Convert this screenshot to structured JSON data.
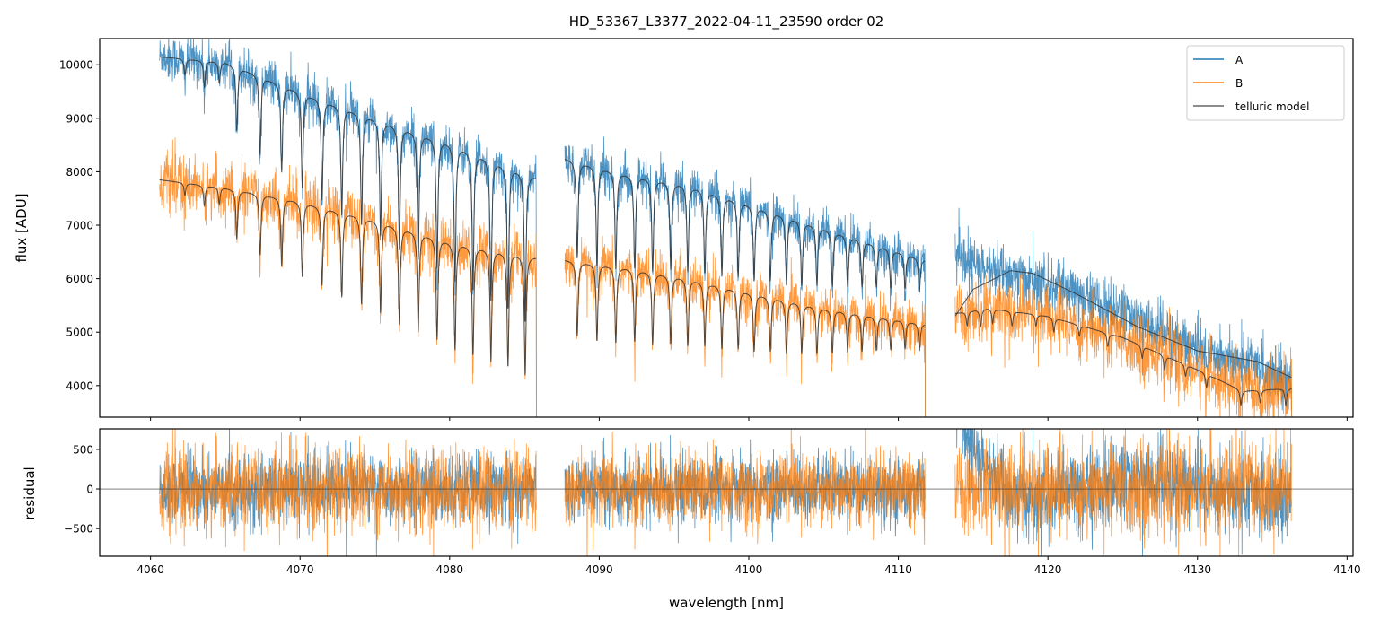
{
  "chart_data": [
    {
      "type": "line",
      "title": "HD_53367_L3377_2022-04-11_23590  order 02",
      "xlabel": "",
      "ylabel": "flux [ADU]",
      "xlim": [
        4056.6,
        4140.4
      ],
      "ylim": [
        3410,
        10490
      ],
      "xticks": [
        4060,
        4070,
        4080,
        4090,
        4100,
        4110,
        4120,
        4130,
        4140
      ],
      "yticks": [
        4000,
        5000,
        6000,
        7000,
        8000,
        9000,
        10000
      ],
      "ytick_labels": [
        "4000",
        "5000",
        "6000",
        "7000",
        "8000",
        "9000",
        "10000"
      ],
      "legend": {
        "placement": "top-right",
        "entries": [
          "A",
          "B",
          "telluric model"
        ]
      },
      "colors": {
        "A": "#1f77b4",
        "B": "#ff7f0e",
        "model": "#333333"
      },
      "segments": [
        {
          "range": [
            4060.6,
            4085.8
          ],
          "lines": [
            4062.3,
            4063.6,
            4064.6,
            4065.77,
            4067.33,
            4068.77,
            4070.15,
            4071.47,
            4072.79,
            4074.11,
            4075.38,
            4076.64,
            4077.9,
            4079.16,
            4080.36,
            4081.56,
            4082.76,
            4083.9,
            4085.05
          ],
          "depths": [
            0.03,
            0.05,
            0.04,
            0.12,
            0.15,
            0.17,
            0.19,
            0.2,
            0.22,
            0.23,
            0.24,
            0.26,
            0.27,
            0.28,
            0.3,
            0.31,
            0.32,
            0.33,
            0.35
          ],
          "A": {
            "continuum": [
              [
                4060.6,
                10150
              ],
              [
                4065,
                10050
              ],
              [
                4070,
                9500
              ],
              [
                4075,
                9000
              ],
              [
                4080,
                8550
              ],
              [
                4085.8,
                7900
              ]
            ],
            "noise": 220
          },
          "B": {
            "continuum": [
              [
                4060.6,
                7850
              ],
              [
                4065,
                7700
              ],
              [
                4070,
                7450
              ],
              [
                4075,
                7100
              ],
              [
                4080,
                6700
              ],
              [
                4085.8,
                6400
              ]
            ],
            "noise": 260
          }
        },
        {
          "range": [
            4087.7,
            4111.8
          ],
          "lines": [
            4088.53,
            4089.85,
            4091.11,
            4092.37,
            4093.57,
            4094.78,
            4095.92,
            4097.06,
            4098.2,
            4099.29,
            4100.36,
            4101.44,
            4102.52,
            4103.54,
            4104.56,
            4105.59,
            4106.61,
            4107.57,
            4108.53,
            4109.49,
            4110.45,
            4111.41
          ],
          "depths": [
            0.22,
            0.23,
            0.23,
            0.22,
            0.22,
            0.21,
            0.21,
            0.2,
            0.2,
            0.19,
            0.19,
            0.18,
            0.18,
            0.17,
            0.16,
            0.15,
            0.14,
            0.13,
            0.12,
            0.11,
            0.1,
            0.1
          ],
          "A": {
            "continuum": [
              [
                4087.7,
                8250
              ],
              [
                4092,
                7950
              ],
              [
                4096,
                7750
              ],
              [
                4100,
                7400
              ],
              [
                4105,
                6950
              ],
              [
                4111.8,
                6350
              ]
            ],
            "noise": 200
          },
          "B": {
            "continuum": [
              [
                4087.7,
                6350
              ],
              [
                4092,
                6200
              ],
              [
                4096,
                6000
              ],
              [
                4100,
                5750
              ],
              [
                4105,
                5450
              ],
              [
                4111.8,
                5150
              ]
            ],
            "noise": 230
          }
        },
        {
          "range": [
            4113.8,
            4136.3
          ],
          "lines": [
            4114.6,
            4115.5,
            4116.3,
            4117.6,
            4119.2,
            4120.4,
            4122.1,
            4124.0,
            4126.3,
            4127.8,
            4129.2,
            4130.6,
            4132.9,
            4134.2,
            4135.9
          ],
          "depths": [
            0.05,
            0.06,
            0.05,
            0.05,
            0.04,
            0.05,
            0.04,
            0.05,
            0.05,
            0.06,
            0.05,
            0.06,
            0.07,
            0.06,
            0.08
          ],
          "A": {
            "continuum": [
              [
                4113.8,
                5300
              ],
              [
                4115,
                5800
              ],
              [
                4117.5,
                6150
              ],
              [
                4119,
                6100
              ],
              [
                4122,
                5700
              ],
              [
                4126,
                5100
              ],
              [
                4130,
                4650
              ],
              [
                4134,
                4450
              ],
              [
                4136.3,
                4150
              ]
            ],
            "data_continuum": [
              [
                4113.8,
                6350
              ],
              [
                4118,
                6050
              ],
              [
                4122,
                5700
              ],
              [
                4125,
                5350
              ],
              [
                4130,
                4700
              ],
              [
                4136.3,
                4150
              ]
            ],
            "noise": 260,
            "line_scale": 0
          },
          "B": {
            "continuum": [
              [
                4113.8,
                5350
              ],
              [
                4116,
                5450
              ],
              [
                4120,
                5300
              ],
              [
                4125,
                4900
              ],
              [
                4130,
                4300
              ],
              [
                4133,
                3900
              ],
              [
                4136.3,
                3950
              ]
            ],
            "noise": 300
          }
        }
      ]
    },
    {
      "type": "line",
      "xlabel": "wavelength [nm]",
      "ylabel": "residual",
      "xlim": [
        4056.6,
        4140.4
      ],
      "ylim": [
        -850,
        760
      ],
      "xticks": [
        4060,
        4070,
        4080,
        4090,
        4100,
        4110,
        4120,
        4130,
        4140
      ],
      "xtick_labels": [
        "4060",
        "4070",
        "4080",
        "4090",
        "4100",
        "4110",
        "4120",
        "4130",
        "4140"
      ],
      "yticks": [
        -500,
        0,
        500
      ],
      "ytick_labels": [
        "−500",
        "0",
        "500"
      ],
      "series": [
        "A",
        "B"
      ]
    }
  ]
}
